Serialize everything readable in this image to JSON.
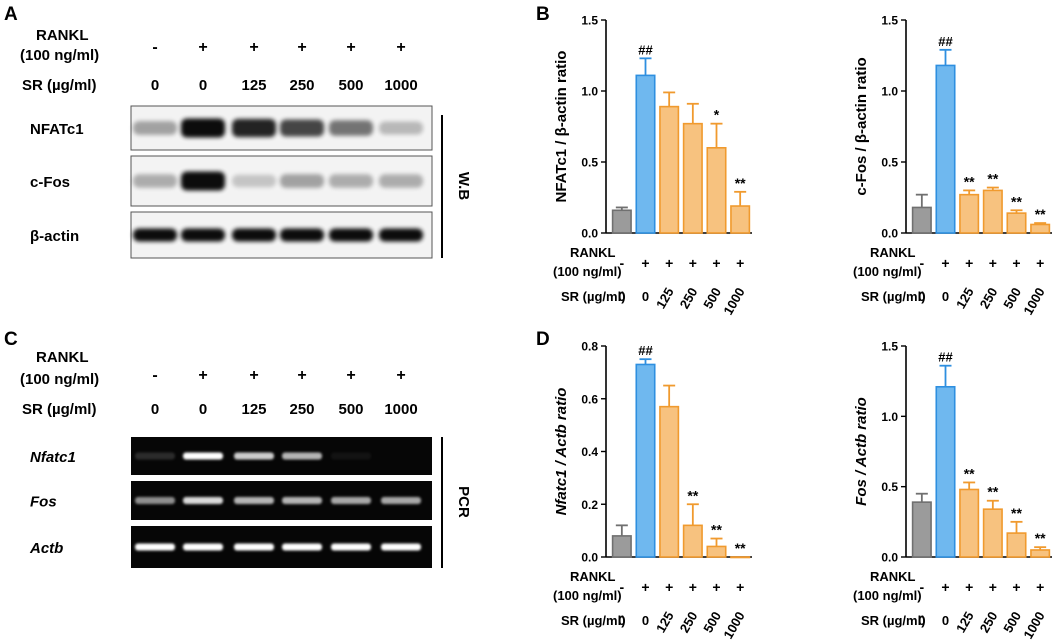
{
  "panel_letters": {
    "a": "A",
    "b": "B",
    "c": "C",
    "d": "D"
  },
  "treatment": {
    "rankl_label_1": "RANKL",
    "rankl_label_2": "(100 ng/ml)",
    "sr_label": "SR (µg/ml)",
    "rankl_signs": [
      "-",
      "+",
      "+",
      "+",
      "+",
      "+"
    ],
    "sr_doses": [
      "0",
      "0",
      "125",
      "250",
      "500",
      "1000"
    ]
  },
  "western_blot": {
    "rows": [
      "NFATc1",
      "c-Fos",
      "β-actin"
    ],
    "side_label": "W.B",
    "band_intensity": {
      "NFATc1": [
        0.35,
        1.0,
        0.9,
        0.75,
        0.55,
        0.25
      ],
      "c-Fos": [
        0.3,
        1.0,
        0.2,
        0.35,
        0.3,
        0.3
      ],
      "β-actin": [
        1.0,
        1.0,
        1.0,
        1.0,
        1.0,
        1.0
      ]
    }
  },
  "pcr": {
    "rows": [
      "Nfatc1",
      "Fos",
      "Actb"
    ],
    "side_label": "PCR",
    "band_intensity": {
      "Nfatc1": [
        0.15,
        1.0,
        0.8,
        0.7,
        0.05,
        0.0
      ],
      "Fos": [
        0.55,
        0.85,
        0.7,
        0.7,
        0.65,
        0.65
      ],
      "Actb": [
        1.0,
        1.0,
        1.0,
        1.0,
        1.0,
        1.0
      ]
    }
  },
  "colors": {
    "control": "#9b9b9b",
    "rankl": "#6fb8ef",
    "sr": "#f7c27f",
    "sr_edge": "#f09a2e",
    "rankl_edge": "#2e8fe0",
    "control_edge": "#707070"
  },
  "chart_data": [
    {
      "type": "bar",
      "panel": "B",
      "categories": [
        "0",
        "0",
        "125",
        "250",
        "500",
        "1000"
      ],
      "values": [
        0.16,
        1.11,
        0.89,
        0.77,
        0.6,
        0.19
      ],
      "errors": [
        0.02,
        0.12,
        0.1,
        0.14,
        0.17,
        0.1
      ],
      "annotations": [
        "",
        "##",
        "",
        "",
        "*",
        "**"
      ],
      "ylabel": "NFATc1 / β-actin ratio",
      "ylabel_italic": false,
      "ylim": [
        0,
        1.5
      ],
      "yticks": [
        "0.0",
        "0.5",
        "1.0",
        "1.5"
      ],
      "ytick_values": [
        0,
        0.5,
        1.0,
        1.5
      ]
    },
    {
      "type": "bar",
      "panel": "B",
      "categories": [
        "0",
        "0",
        "125",
        "250",
        "500",
        "1000"
      ],
      "values": [
        0.18,
        1.18,
        0.27,
        0.3,
        0.14,
        0.06
      ],
      "errors": [
        0.09,
        0.11,
        0.03,
        0.02,
        0.02,
        0.01
      ],
      "annotations": [
        "",
        "##",
        "**",
        "**",
        "**",
        "**"
      ],
      "ylabel": "c-Fos / β-actin ratio",
      "ylabel_italic": false,
      "ylim": [
        0,
        1.5
      ],
      "yticks": [
        "0.0",
        "0.5",
        "1.0",
        "1.5"
      ],
      "ytick_values": [
        0,
        0.5,
        1.0,
        1.5
      ]
    },
    {
      "type": "bar",
      "panel": "D",
      "categories": [
        "0",
        "0",
        "125",
        "250",
        "500",
        "1000"
      ],
      "values": [
        0.08,
        0.73,
        0.57,
        0.12,
        0.04,
        0.0
      ],
      "errors": [
        0.04,
        0.02,
        0.08,
        0.08,
        0.03,
        0.0
      ],
      "annotations": [
        "",
        "##",
        "",
        "**",
        "**",
        "**"
      ],
      "ylabel": "Nfatc1 / Actb ratio",
      "ylabel_italic": true,
      "ylim": [
        0,
        0.8
      ],
      "yticks": [
        "0.0",
        "0.2",
        "0.4",
        "0.6",
        "0.8"
      ],
      "ytick_values": [
        0,
        0.2,
        0.4,
        0.6,
        0.8
      ]
    },
    {
      "type": "bar",
      "panel": "D",
      "categories": [
        "0",
        "0",
        "125",
        "250",
        "500",
        "1000"
      ],
      "values": [
        0.39,
        1.21,
        0.48,
        0.34,
        0.17,
        0.05
      ],
      "errors": [
        0.06,
        0.15,
        0.05,
        0.06,
        0.08,
        0.02
      ],
      "annotations": [
        "",
        "##",
        "**",
        "**",
        "**",
        "**"
      ],
      "ylabel": "Fos / Actb ratio",
      "ylabel_italic": true,
      "ylim": [
        0,
        1.5
      ],
      "yticks": [
        "0.0",
        "0.5",
        "1.0",
        "1.5"
      ],
      "ytick_values": [
        0,
        0.5,
        1.0,
        1.5
      ]
    }
  ]
}
